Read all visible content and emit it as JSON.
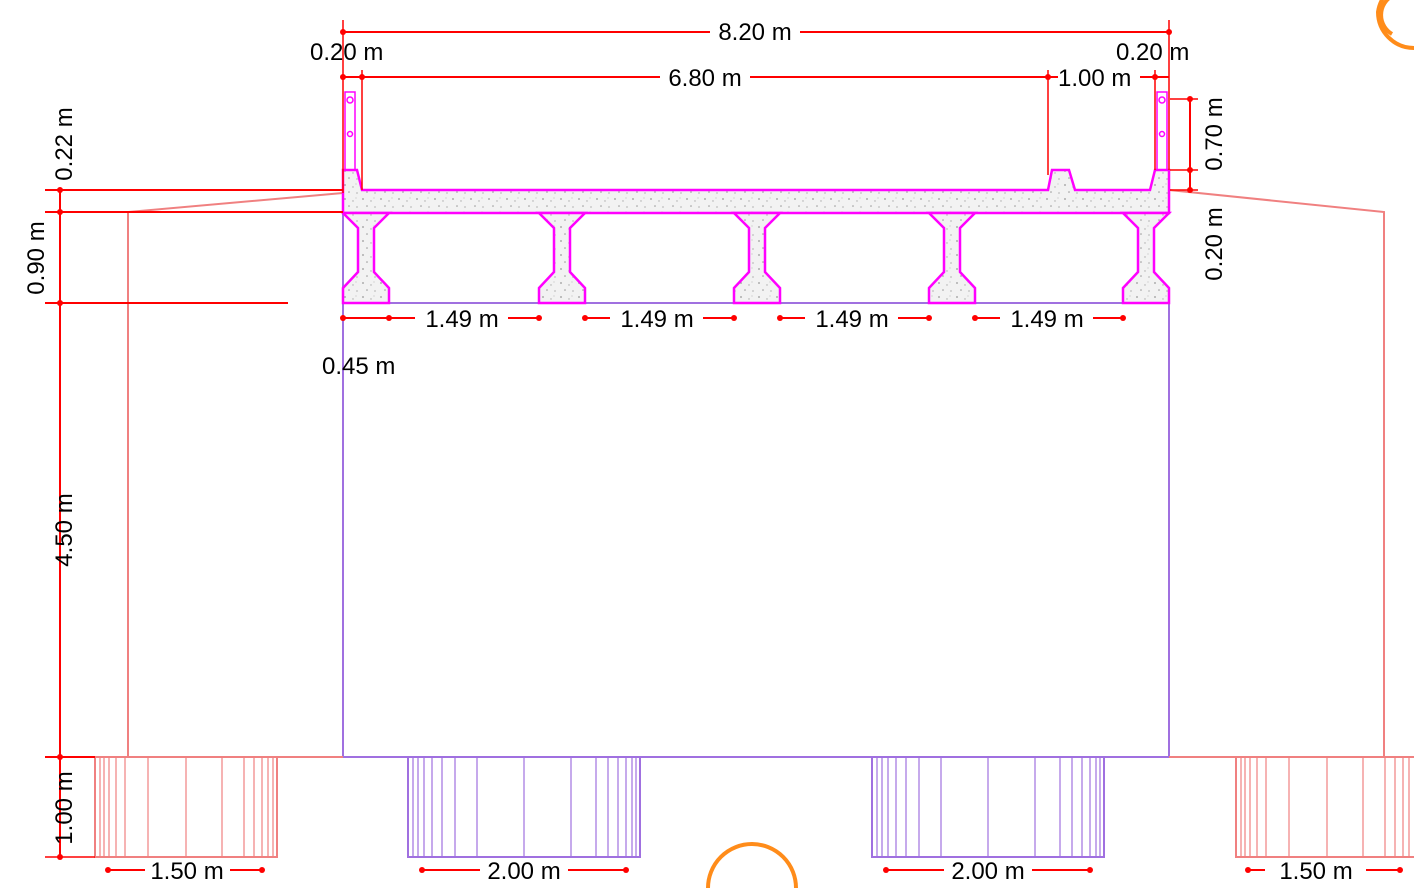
{
  "dimensions": {
    "total_width": "8.20 m",
    "left_curb": "0.20 m",
    "right_curb": "0.20 m",
    "roadway": "6.80 m",
    "sidewalk": "1.00 m",
    "parapet_height": "0.70 m",
    "slab_thickness_right": "0.20 m",
    "slab_thickness_left": "0.22 m",
    "girder_depth": "0.90 m",
    "girder_spacing_1": "1.49 m",
    "girder_spacing_2": "1.49 m",
    "girder_spacing_3": "1.49 m",
    "girder_spacing_4": "1.49 m",
    "overhang": "0.45 m",
    "pier_height": "4.50 m",
    "footing_depth": "1.00 m",
    "footing_left": "1.50 m",
    "footing_center_1": "2.00 m",
    "footing_center_2": "2.00 m",
    "footing_right": "1.50 m"
  },
  "colors": {
    "dimension": "#ff0000",
    "abutment": "#f08080",
    "pier": "#a070e0",
    "deck": "#ff00ff"
  }
}
